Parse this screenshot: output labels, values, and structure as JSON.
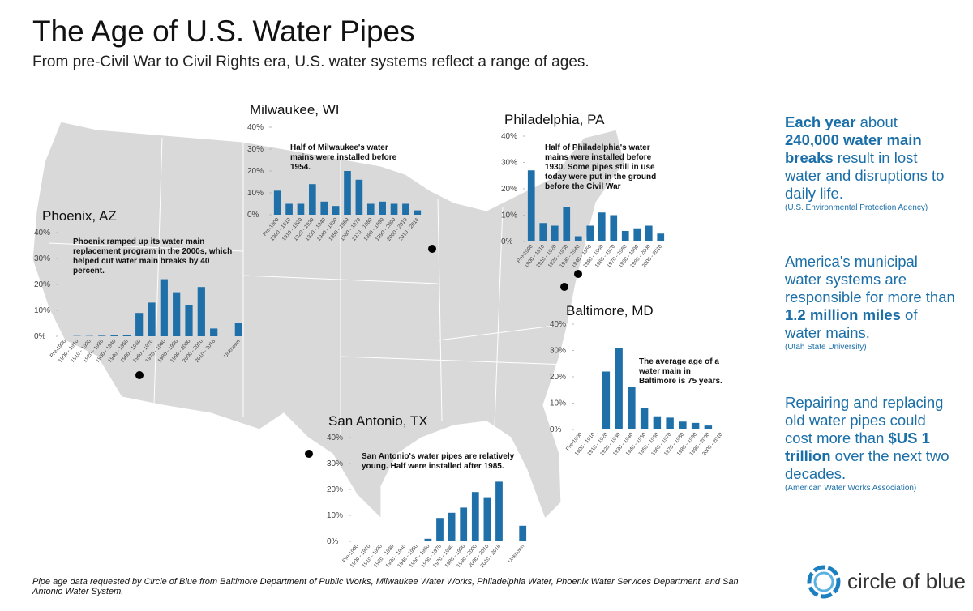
{
  "title": "The Age of U.S. Water Pipes",
  "subtitle": "From pre-Civil War to Civil Rights era, U.S. water systems reflect a range of ages.",
  "chart_data": [
    {
      "type": "bar",
      "title": "Milwaukee, WI",
      "annotation": "Half of Milwaukee's water mains were installed before 1954.",
      "color": "#1f6fa8",
      "categories": [
        "Pre-1900",
        "1900 - 1910",
        "1910 - 1920",
        "1920 - 1930",
        "1930 - 1940",
        "1940 - 1950",
        "1950 - 1960",
        "1960 - 1970",
        "1970 - 1980",
        "1980 - 1990",
        "1990 - 2000",
        "2000 - 2010",
        "2010 - 2016"
      ],
      "values": [
        11,
        5,
        5,
        14,
        6,
        4,
        20,
        16,
        5,
        6,
        5,
        5,
        2
      ],
      "ylim": [
        0,
        40
      ],
      "yticks": [
        {
          "value": 0,
          "label": "0%"
        },
        {
          "value": 10,
          "label": "10%"
        },
        {
          "value": 20,
          "label": "20%"
        },
        {
          "value": 30,
          "label": "30%"
        },
        {
          "value": 40,
          "label": "40%"
        }
      ]
    },
    {
      "type": "bar",
      "title": "Philadelphia, PA",
      "annotation": "Half of Philadelphia's water mains were installed before 1930. Some pipes still in use today were put in the ground before the Civil War",
      "color": "#1f6fa8",
      "categories": [
        "Pre-1900",
        "1900 - 1910",
        "1910 - 1920",
        "1920 - 1930",
        "1930 - 1940",
        "1940 - 1950",
        "1950 - 1960",
        "1960 - 1970",
        "1970 - 1980",
        "1980 - 1990",
        "1990 - 2000",
        "2000 - 2010"
      ],
      "values": [
        27,
        7,
        6,
        13,
        2,
        6,
        11,
        10,
        4,
        5,
        6,
        3
      ],
      "ylim": [
        0,
        40
      ],
      "yticks": [
        {
          "value": 0,
          "label": "0%"
        },
        {
          "value": 10,
          "label": "10%"
        },
        {
          "value": 20,
          "label": "20%"
        },
        {
          "value": 30,
          "label": "30%"
        },
        {
          "value": 40,
          "label": "40%"
        }
      ]
    },
    {
      "type": "bar",
      "title": "Phoenix, AZ",
      "annotation": "Phoenix ramped up its water main replacement program in the 2000s, which helped cut water main breaks by 40 percent.",
      "color": "#1f6fa8",
      "categories": [
        "Pre-1900",
        "1900 - 1910",
        "1910 - 1920",
        "1920 - 1930",
        "1930 - 1940",
        "1940 - 1950",
        "1950 - 1960",
        "1960 - 1970",
        "1970 - 1980",
        "1980 - 1990",
        "1990 - 2000",
        "2000 - 2010",
        "2010 - 2016",
        null,
        "Unknown"
      ],
      "values": [
        0,
        0.1,
        0.1,
        0.2,
        0.3,
        0.5,
        9,
        13,
        22,
        17,
        12,
        19,
        3,
        null,
        5
      ],
      "ylim": [
        0,
        40
      ],
      "yticks": [
        {
          "value": 0,
          "label": "0%"
        },
        {
          "value": 10,
          "label": "10%"
        },
        {
          "value": 20,
          "label": "20%"
        },
        {
          "value": 30,
          "label": "30%"
        },
        {
          "value": 40,
          "label": "40%"
        }
      ]
    },
    {
      "type": "bar",
      "title": "Baltimore, MD",
      "annotation": "The average age of a water main in Baltimore is 75 years.",
      "color": "#1f6fa8",
      "categories": [
        "Pre-1900",
        "1900 - 1910",
        "1910 - 1920",
        "1920 - 1930",
        "1930 - 1940",
        "1940 - 1950",
        "1950 - 1960",
        "1960 - 1970",
        "1970 - 1980",
        "1980 - 1990",
        "1990 - 2000",
        "2000 - 2010"
      ],
      "values": [
        0,
        0.3,
        22,
        31,
        16,
        8,
        5,
        4.5,
        3,
        2.5,
        1.5,
        0.3
      ],
      "ylim": [
        0,
        40
      ],
      "yticks": [
        {
          "value": 0,
          "label": "0%"
        },
        {
          "value": 10,
          "label": "10%"
        },
        {
          "value": 20,
          "label": "20%"
        },
        {
          "value": 30,
          "label": "30%"
        },
        {
          "value": 40,
          "label": "40%"
        }
      ]
    },
    {
      "type": "bar",
      "title": "San Antonio, TX",
      "annotation": "San Antonio's water pipes are relatively young. Half were installed after 1985.",
      "color": "#1f6fa8",
      "categories": [
        "Pre-1900",
        "1900 - 1910",
        "1910 - 1920",
        "1920 - 1930",
        "1930 - 1940",
        "1940 - 1950",
        "1950 - 1960",
        "1960 - 1970",
        "1970 - 1980",
        "1980 - 1990",
        "1990 - 2000",
        "2000 - 2010",
        "2010 - 2016",
        null,
        "Unknown"
      ],
      "values": [
        0.2,
        0.2,
        0.3,
        0.3,
        0.3,
        0.3,
        1,
        9,
        11,
        13,
        19,
        17,
        23,
        null,
        6
      ],
      "ylim": [
        0,
        40
      ],
      "yticks": [
        {
          "value": 0,
          "label": "0%"
        },
        {
          "value": 10,
          "label": "10%"
        },
        {
          "value": 20,
          "label": "20%"
        },
        {
          "value": 30,
          "label": "30%"
        },
        {
          "value": 40,
          "label": "40%"
        }
      ]
    }
  ],
  "facts": [
    {
      "parts": [
        {
          "text": "Each year",
          "bold": true
        },
        {
          "text": " about ",
          "bold": false
        },
        {
          "text": "240,000 water main breaks",
          "bold": true
        },
        {
          "text": " result in lost water and disruptions to daily life.",
          "bold": false
        }
      ],
      "source": "(U.S. Environmental Protection Agency)"
    },
    {
      "parts": [
        {
          "text": "America's municipal water systems are responsible for more than ",
          "bold": false
        },
        {
          "text": "1.2 million miles",
          "bold": true
        },
        {
          "text": " of water mains.",
          "bold": false
        }
      ],
      "source": "(Utah State University)"
    },
    {
      "parts": [
        {
          "text": "Repairing and replacing old water pipes could cost more than ",
          "bold": false
        },
        {
          "text": "$US 1 trillion",
          "bold": true
        },
        {
          "text": " over the next two decades.",
          "bold": false
        }
      ],
      "source": "(American Water Works Association)"
    }
  ],
  "footnote": "Pipe age data requested by Circle of Blue from Baltimore Department of Public Works, Milwaukee Water Works, Philadelphia Water, Phoenix Water Services Department, and San Antonio Water System.",
  "logo": "circle of blue"
}
